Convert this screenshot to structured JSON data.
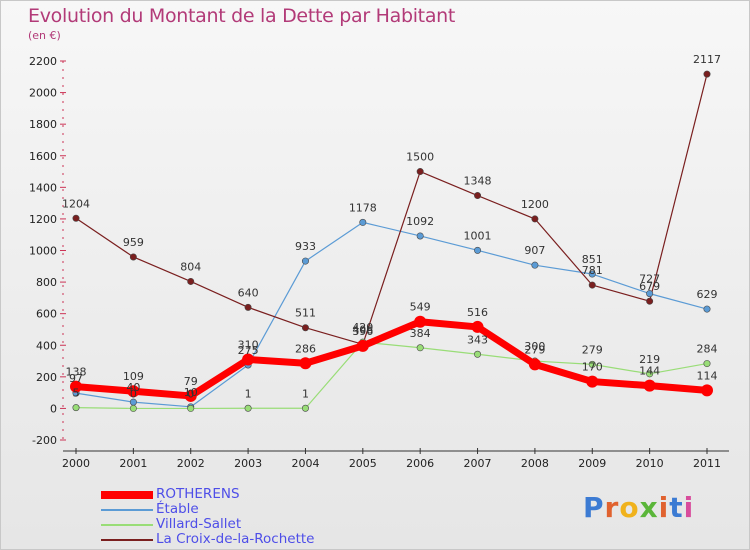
{
  "title": "Evolution du Montant de la Dette par Habitant",
  "subtitle": "(en €)",
  "brand": {
    "text": "Proxiti",
    "letter_colors": [
      "#3c7bd3",
      "#e0622f",
      "#f0b21c",
      "#5bb63a",
      "#e0622f",
      "#3c7bd3",
      "#d84c9c"
    ]
  },
  "chart_data": {
    "type": "line",
    "x": [
      2000,
      2001,
      2002,
      2003,
      2004,
      2005,
      2006,
      2007,
      2008,
      2009,
      2010,
      2011
    ],
    "ylim": [
      -200,
      2200
    ],
    "yticks": [
      -200,
      0,
      200,
      400,
      600,
      800,
      1000,
      1200,
      1400,
      1600,
      1800,
      2000,
      2200
    ],
    "grid": false,
    "legend_position": "bottom-left",
    "series": [
      {
        "name": "ROTHERENS",
        "color": "#ff0000",
        "width": 7,
        "values": [
          138,
          109,
          79,
          310,
          286,
          396,
          549,
          516,
          279,
          170,
          144,
          114
        ]
      },
      {
        "name": "Étable",
        "color": "#5b9bd5",
        "width": 1.2,
        "values": [
          97,
          40,
          10,
          275,
          933,
          1178,
          1092,
          1001,
          907,
          851,
          727,
          629
        ]
      },
      {
        "name": "Villard-Sallet",
        "color": "#99dd77",
        "width": 1.2,
        "values": [
          5,
          0,
          0,
          1,
          1,
          420,
          384,
          343,
          300,
          279,
          219,
          284
        ]
      },
      {
        "name": "La Croix-de-la-Rochette",
        "color": "#7a1f1f",
        "width": 1.2,
        "values": [
          1204,
          959,
          804,
          640,
          511,
          406,
          1500,
          1348,
          1200,
          781,
          679,
          2117
        ]
      }
    ]
  }
}
